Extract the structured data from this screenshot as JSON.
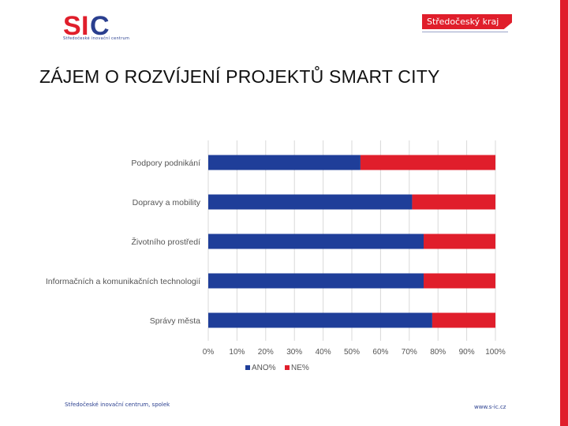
{
  "header": {
    "logo_text": "SIC",
    "logo_subtext": "Středočeské inovační centrum",
    "brand": "Středočeský kraj"
  },
  "slide": {
    "title": "ZÁJEM O ROZVÍJENÍ PROJEKTŮ SMART CITY"
  },
  "chart_data": {
    "type": "bar",
    "orientation": "horizontal",
    "stacked": "percent",
    "categories": [
      "Podpory podnikání",
      "Dopravy a mobility",
      "Životního prostředí",
      "Informačních a komunikačních technologií",
      "Správy města"
    ],
    "series": [
      {
        "name": "ANO%",
        "values": [
          53,
          71,
          75,
          75,
          78
        ],
        "color": "#1f3e99"
      },
      {
        "name": "NE%",
        "values": [
          47,
          29,
          25,
          25,
          22
        ],
        "color": "#e01e2b"
      }
    ],
    "ticks": [
      "0%",
      "10%",
      "20%",
      "30%",
      "40%",
      "50%",
      "60%",
      "70%",
      "80%",
      "90%",
      "100%"
    ],
    "xlim": [
      0,
      100
    ],
    "grid": true,
    "legend_position": "bottom"
  },
  "footer": {
    "left": "Středočeské inovační centrum, spolek",
    "right": "www.s-ic.cz"
  }
}
